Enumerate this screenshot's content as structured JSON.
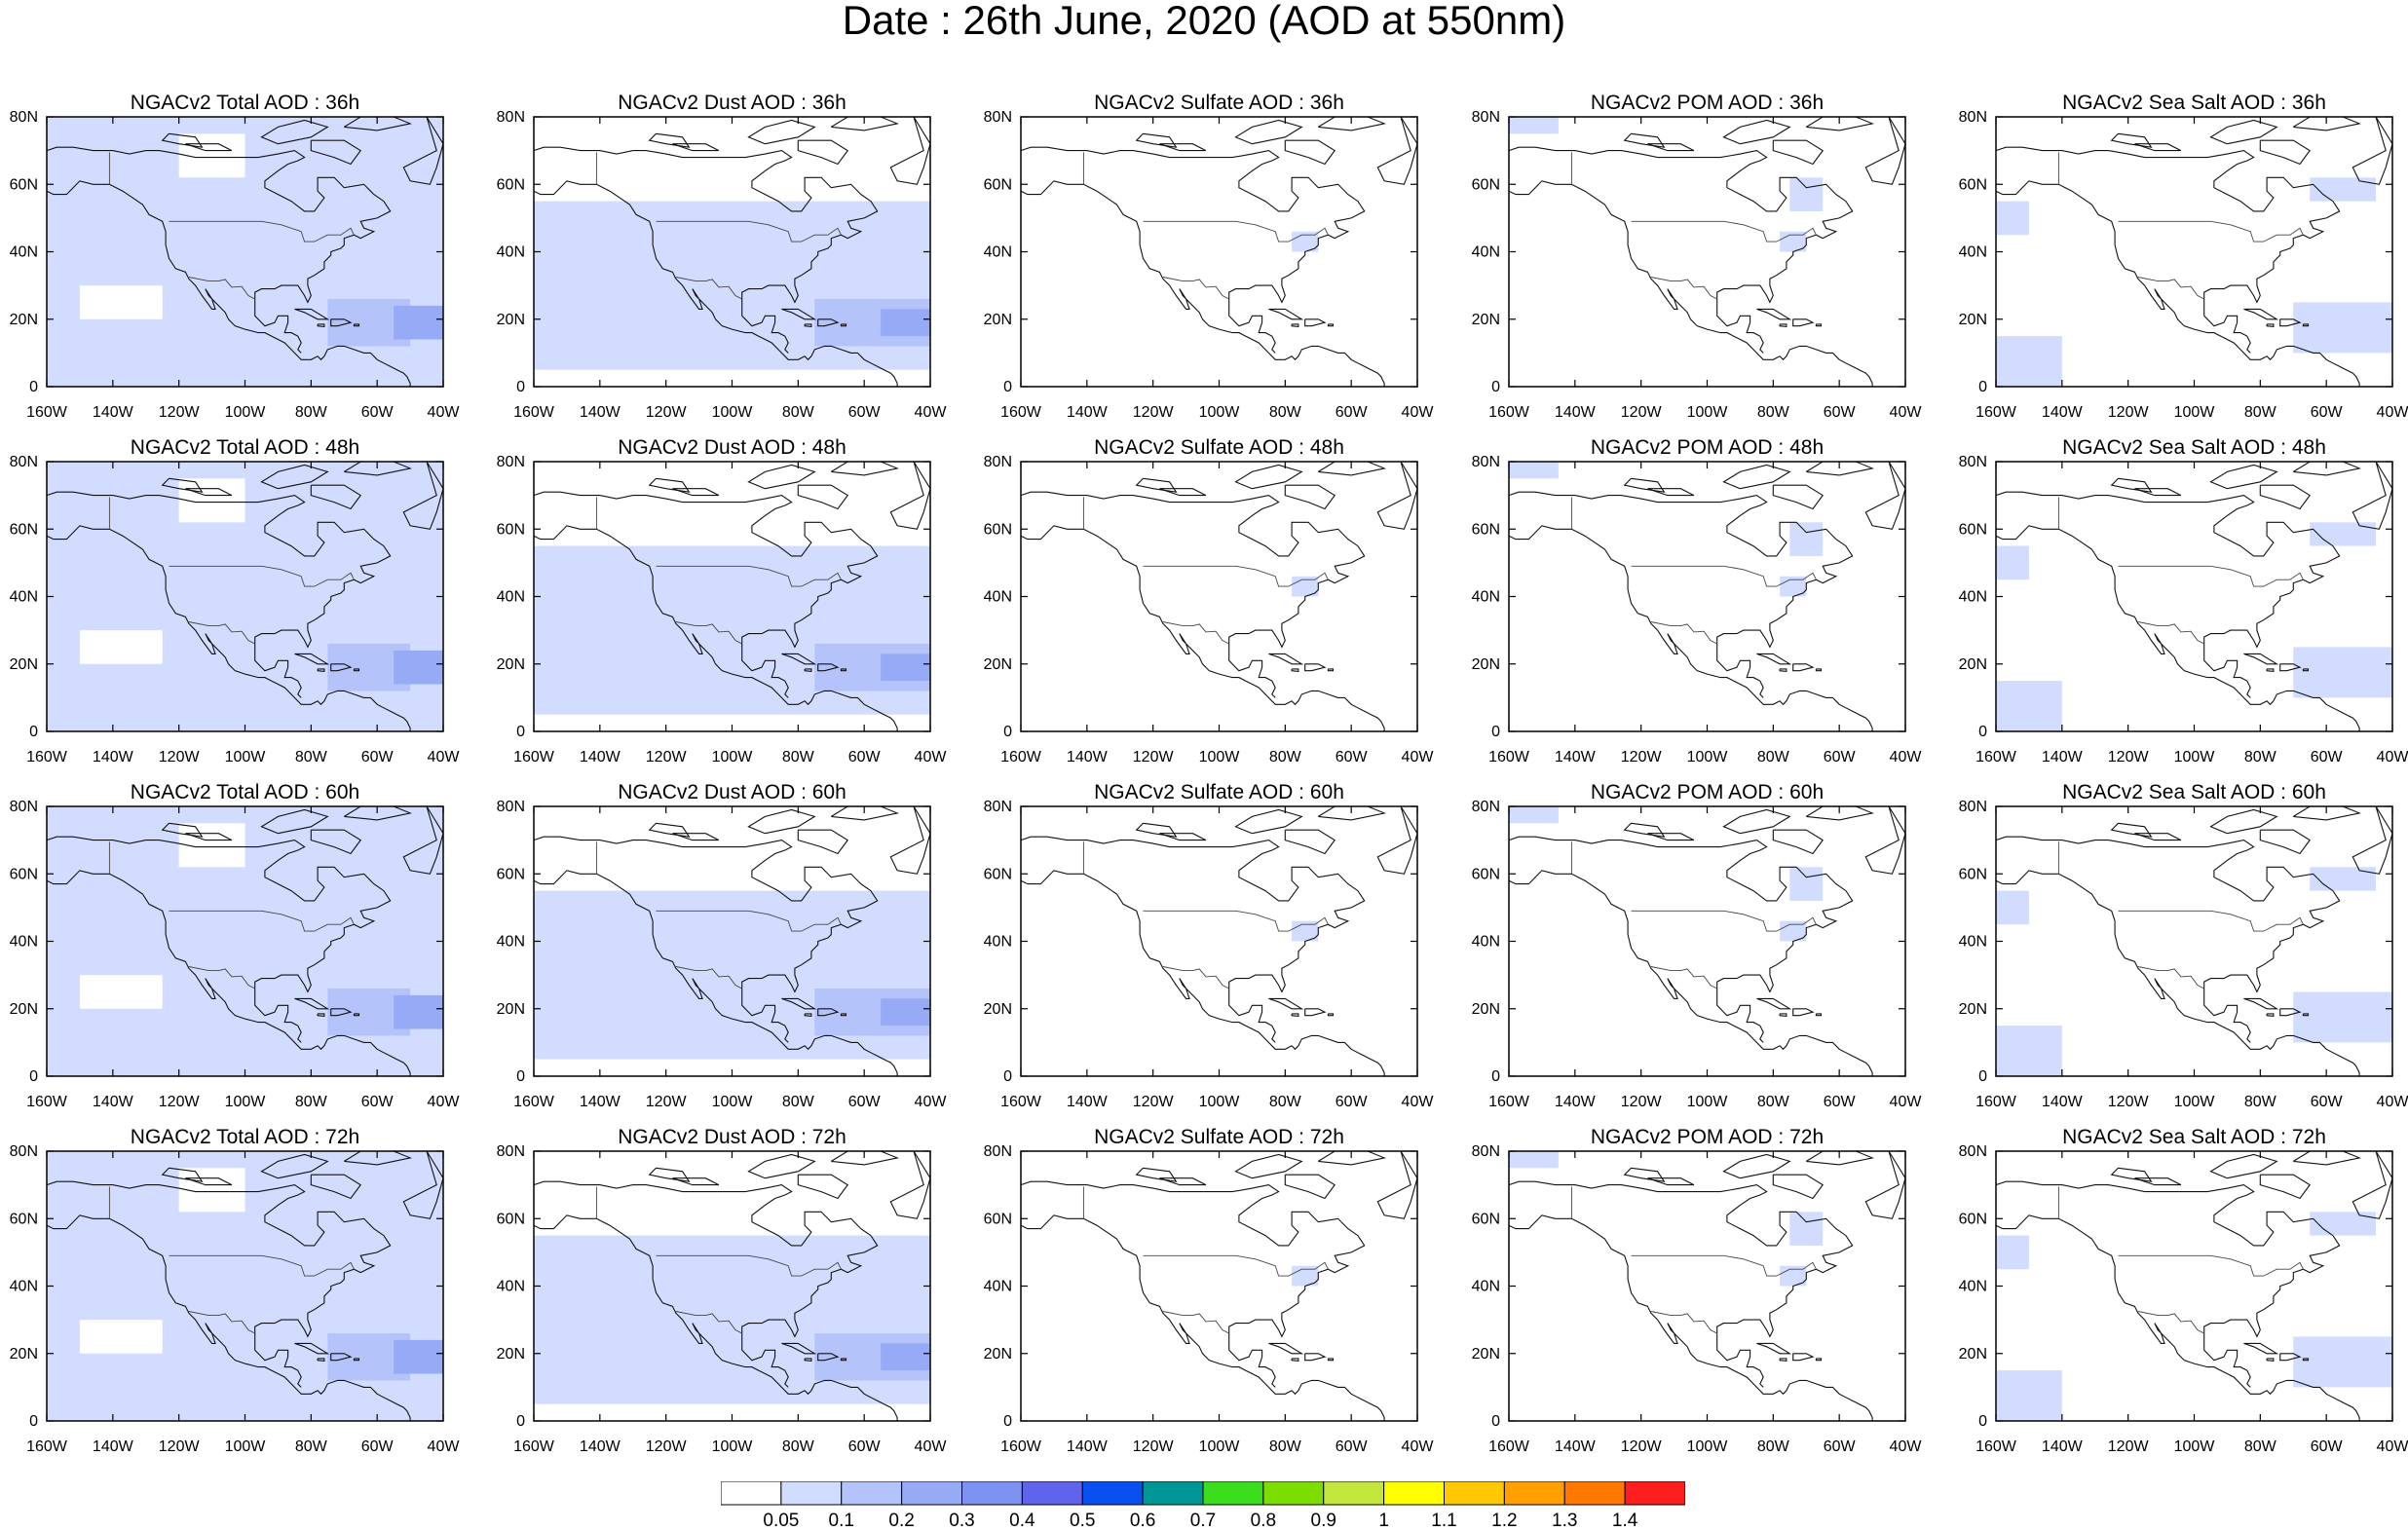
{
  "figure": {
    "title": "Date : 26th June, 2020 (AOD at 550nm)"
  },
  "map_axes": {
    "lat_ticks": [
      "0",
      "20N",
      "40N",
      "60N",
      "80N"
    ],
    "lon_ticks": [
      "160W",
      "140W",
      "120W",
      "100W",
      "80W",
      "60W",
      "40W"
    ],
    "lon_range": [
      -160,
      -40
    ],
    "lat_range": [
      0,
      80
    ]
  },
  "chart_data": {
    "type": "heatmap",
    "variable": "AOD at 550nm",
    "panels": [
      {
        "title": "NGACv2 Total AOD : 36h",
        "species": "total",
        "hour": 36
      },
      {
        "title": "NGACv2 Dust AOD : 36h",
        "species": "dust",
        "hour": 36
      },
      {
        "title": "NGACv2 Sulfate AOD : 36h",
        "species": "sulfate",
        "hour": 36
      },
      {
        "title": "NGACv2 POM AOD : 36h",
        "species": "pom",
        "hour": 36
      },
      {
        "title": "NGACv2 Sea Salt AOD : 36h",
        "species": "seasalt",
        "hour": 36
      },
      {
        "title": "NGACv2 Total AOD : 48h",
        "species": "total",
        "hour": 48
      },
      {
        "title": "NGACv2 Dust AOD : 48h",
        "species": "dust",
        "hour": 48
      },
      {
        "title": "NGACv2 Sulfate AOD : 48h",
        "species": "sulfate",
        "hour": 48
      },
      {
        "title": "NGACv2 POM AOD : 48h",
        "species": "pom",
        "hour": 48
      },
      {
        "title": "NGACv2 Sea Salt AOD : 48h",
        "species": "seasalt",
        "hour": 48
      },
      {
        "title": "NGACv2 Total AOD : 60h",
        "species": "total",
        "hour": 60
      },
      {
        "title": "NGACv2 Dust AOD : 60h",
        "species": "dust",
        "hour": 60
      },
      {
        "title": "NGACv2 Sulfate AOD : 60h",
        "species": "sulfate",
        "hour": 60
      },
      {
        "title": "NGACv2 POM AOD : 60h",
        "species": "pom",
        "hour": 60
      },
      {
        "title": "NGACv2 Sea Salt AOD : 60h",
        "species": "seasalt",
        "hour": 60
      },
      {
        "title": "NGACv2 Total AOD : 72h",
        "species": "total",
        "hour": 72
      },
      {
        "title": "NGACv2 Dust AOD : 72h",
        "species": "dust",
        "hour": 72
      },
      {
        "title": "NGACv2 Sulfate AOD : 72h",
        "species": "sulfate",
        "hour": 72
      },
      {
        "title": "NGACv2 POM AOD : 72h",
        "species": "pom",
        "hour": 72
      },
      {
        "title": "NGACv2 Sea Salt  AOD : 72h",
        "species": "seasalt",
        "hour": 72
      }
    ],
    "regions": {
      "total": [
        {
          "lon": [
            -160,
            -40
          ],
          "lat": [
            0,
            80
          ],
          "level": 1
        },
        {
          "lon": [
            -75,
            -50
          ],
          "lat": [
            12,
            26
          ],
          "level": 2
        },
        {
          "lon": [
            -55,
            -40
          ],
          "lat": [
            14,
            24
          ],
          "level": 3
        },
        {
          "lon": [
            -150,
            -125
          ],
          "lat": [
            20,
            30
          ],
          "level": 0
        },
        {
          "lon": [
            -120,
            -100
          ],
          "lat": [
            62,
            75
          ],
          "level": 0
        }
      ],
      "dust": [
        {
          "lon": [
            -160,
            -40
          ],
          "lat": [
            5,
            55
          ],
          "level": 1
        },
        {
          "lon": [
            -75,
            -40
          ],
          "lat": [
            12,
            26
          ],
          "level": 2
        },
        {
          "lon": [
            -55,
            -40
          ],
          "lat": [
            15,
            23
          ],
          "level": 3
        }
      ],
      "sulfate": [
        {
          "lon": [
            -78,
            -70
          ],
          "lat": [
            40,
            46
          ],
          "level": 1
        }
      ],
      "pom": [
        {
          "lon": [
            -160,
            -145
          ],
          "lat": [
            75,
            80
          ],
          "level": 1
        },
        {
          "lon": [
            -75,
            -65
          ],
          "lat": [
            52,
            62
          ],
          "level": 1
        },
        {
          "lon": [
            -78,
            -70
          ],
          "lat": [
            40,
            46
          ],
          "level": 1
        }
      ],
      "seasalt": [
        {
          "lon": [
            -160,
            -140
          ],
          "lat": [
            0,
            15
          ],
          "level": 1
        },
        {
          "lon": [
            -160,
            -150
          ],
          "lat": [
            45,
            55
          ],
          "level": 1
        },
        {
          "lon": [
            -70,
            -40
          ],
          "lat": [
            10,
            25
          ],
          "level": 1
        },
        {
          "lon": [
            -65,
            -45
          ],
          "lat": [
            55,
            62
          ],
          "level": 1
        }
      ]
    },
    "colorbar": {
      "levels": [
        "0.05",
        "0.1",
        "0.2",
        "0.3",
        "0.4",
        "0.5",
        "0.6",
        "0.7",
        "0.8",
        "0.9",
        "1",
        "1.1",
        "1.2",
        "1.3",
        "1.4"
      ],
      "colors": [
        "#ffffff",
        "#d2dcff",
        "#b4c3fa",
        "#96aaf5",
        "#7d91f0",
        "#5f64eb",
        "#0a50f0",
        "#009696",
        "#3cdc1e",
        "#7ddc00",
        "#c3e63c",
        "#ffff00",
        "#ffc800",
        "#ffa000",
        "#ff7800",
        "#ff1e1e"
      ]
    }
  }
}
